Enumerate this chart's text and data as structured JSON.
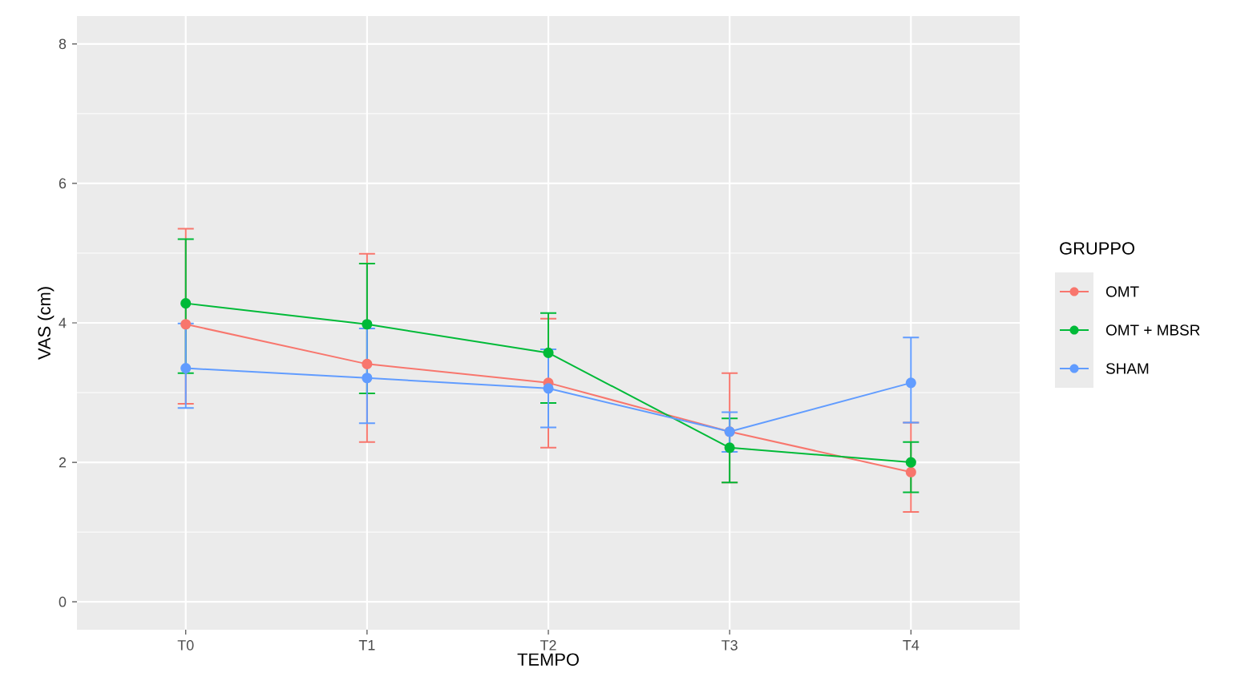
{
  "chart_data": {
    "type": "line",
    "xlabel": "TEMPO",
    "ylabel": "VAS (cm)",
    "legend_title": "GRUPPO",
    "categories": [
      "T0",
      "T1",
      "T2",
      "T3",
      "T4"
    ],
    "ylim": [
      -0.4,
      8.4
    ],
    "yticks": [
      0,
      2,
      4,
      6,
      8
    ],
    "grid": true,
    "legend": "right",
    "marker": "circle",
    "line_style": "solid",
    "series": [
      {
        "name": "OMT",
        "color": "#f8766d",
        "values": [
          3.98,
          3.41,
          3.14,
          2.44,
          1.86
        ],
        "errors": [
          [
            2.84,
            5.35
          ],
          [
            2.29,
            4.99
          ],
          [
            2.21,
            4.06
          ],
          [
            1.71,
            3.28
          ],
          [
            1.29,
            2.57
          ]
        ]
      },
      {
        "name": "OMT + MBSR",
        "color": "#00ba38",
        "values": [
          4.28,
          3.98,
          3.57,
          2.21,
          2.0
        ],
        "errors": [
          [
            3.28,
            5.2
          ],
          [
            2.99,
            4.85
          ],
          [
            2.85,
            4.14
          ],
          [
            1.71,
            2.63
          ],
          [
            1.57,
            2.29
          ]
        ]
      },
      {
        "name": "SHAM",
        "color": "#619cff",
        "values": [
          3.35,
          3.21,
          3.06,
          2.44,
          3.14
        ],
        "errors": [
          [
            2.78,
            3.99
          ],
          [
            2.56,
            3.92
          ],
          [
            2.5,
            3.62
          ],
          [
            2.15,
            2.72
          ],
          [
            2.57,
            3.79
          ]
        ]
      }
    ]
  }
}
